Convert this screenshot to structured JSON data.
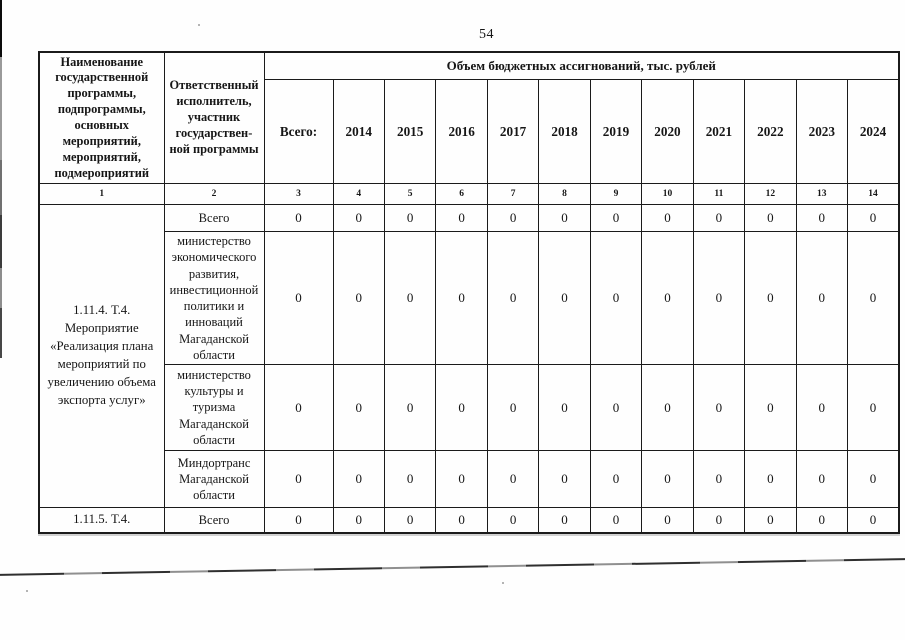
{
  "page_number": "54",
  "colors": {
    "ink": "#1b1b1b",
    "paper": "#fefefe"
  },
  "table": {
    "header": {
      "program_column": "Наименование государственной программы, подпрограммы, основных мероприятий, мероприятий, подмероприятий",
      "executor_column": "Ответственный исполнитель, участник государствен-ной программы",
      "budget_group": "Объем бюджетных ассигнований, тыс. рублей",
      "total_label": "Всего:",
      "years": [
        "2014",
        "2015",
        "2016",
        "2017",
        "2018",
        "2019",
        "2020",
        "2021",
        "2022",
        "2023",
        "2024"
      ]
    },
    "column_numbers": [
      "1",
      "2",
      "3",
      "4",
      "5",
      "6",
      "7",
      "8",
      "9",
      "10",
      "11",
      "12",
      "13",
      "14"
    ],
    "rows": [
      {
        "program": "1.11.4. Т.4. Мероприятие «Реализация плана мероприятий по увеличению объема экспорта услуг»",
        "program_rowspan": 4,
        "executor": "Всего",
        "values": [
          "0",
          "0",
          "0",
          "0",
          "0",
          "0",
          "0",
          "0",
          "0",
          "0",
          "0",
          "0"
        ]
      },
      {
        "executor": "министерство экономического развития, инвестиционной политики и инноваций Магаданской области",
        "values": [
          "0",
          "0",
          "0",
          "0",
          "0",
          "0",
          "0",
          "0",
          "0",
          "0",
          "0",
          "0"
        ]
      },
      {
        "executor": "министерство культуры и туризма Магаданской области",
        "values": [
          "0",
          "0",
          "0",
          "0",
          "0",
          "0",
          "0",
          "0",
          "0",
          "0",
          "0",
          "0"
        ]
      },
      {
        "executor": "Миндортранс Магаданской области",
        "values": [
          "0",
          "0",
          "0",
          "0",
          "0",
          "0",
          "0",
          "0",
          "0",
          "0",
          "0",
          "0"
        ]
      },
      {
        "program": "1.11.5. Т.4.",
        "program_rowspan": 1,
        "executor": "Всего",
        "values": [
          "0",
          "0",
          "0",
          "0",
          "0",
          "0",
          "0",
          "0",
          "0",
          "0",
          "0",
          "0"
        ]
      }
    ]
  }
}
